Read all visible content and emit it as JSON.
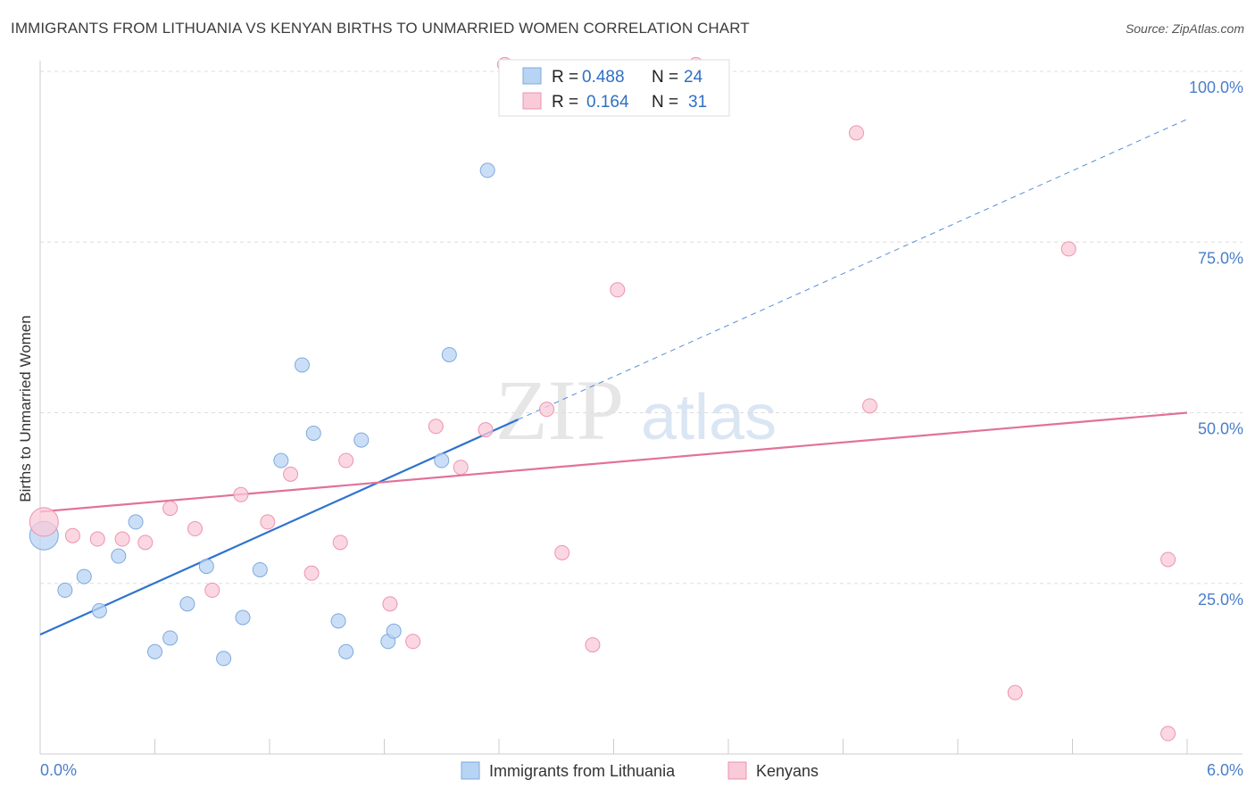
{
  "title": "IMMIGRANTS FROM LITHUANIA VS KENYAN BIRTHS TO UNMARRIED WOMEN CORRELATION CHART",
  "source": "Source: ZipAtlas.com",
  "watermark": {
    "zip": "ZIP",
    "atlas": "atlas"
  },
  "colors": {
    "blue_fill": "#b8d4f4",
    "blue_stroke": "#7ea9de",
    "blue_line": "#2e72cf",
    "pink_fill": "#f9cad8",
    "pink_stroke": "#ec93b1",
    "pink_line": "#e2719a",
    "tick_text": "#4a7fc9",
    "grid": "#dddddd"
  },
  "legend": {
    "rows": [
      {
        "r_label": "R =",
        "r_value": "0.488",
        "n_label": "N =",
        "n_value": "24"
      },
      {
        "r_label": "R =",
        "r_value": "0.164",
        "n_label": "N =",
        "n_value": "31"
      }
    ]
  },
  "chart_data": {
    "type": "scatter",
    "title": "IMMIGRANTS FROM LITHUANIA VS KENYAN BIRTHS TO UNMARRIED WOMEN CORRELATION CHART",
    "xlabel": "",
    "ylabel": "Births to Unmarried Women",
    "xlim": [
      0,
      6
    ],
    "ylim": [
      0,
      100
    ],
    "x_tick_labels": [
      "0.0%",
      "6.0%"
    ],
    "y_ticks": [
      25,
      50,
      75,
      100
    ],
    "y_tick_labels": [
      "25.0%",
      "50.0%",
      "75.0%",
      "100.0%"
    ],
    "series": [
      {
        "name": "Immigrants from Lithuania",
        "color": "blue",
        "points": [
          {
            "x": 0.02,
            "y": 32,
            "big": true
          },
          {
            "x": 0.13,
            "y": 24
          },
          {
            "x": 0.23,
            "y": 26
          },
          {
            "x": 0.31,
            "y": 21
          },
          {
            "x": 0.41,
            "y": 29
          },
          {
            "x": 0.5,
            "y": 34
          },
          {
            "x": 0.6,
            "y": 15
          },
          {
            "x": 0.68,
            "y": 17
          },
          {
            "x": 0.77,
            "y": 22
          },
          {
            "x": 0.87,
            "y": 27.5
          },
          {
            "x": 0.96,
            "y": 14
          },
          {
            "x": 1.06,
            "y": 20
          },
          {
            "x": 1.15,
            "y": 27
          },
          {
            "x": 1.26,
            "y": 43
          },
          {
            "x": 1.37,
            "y": 57
          },
          {
            "x": 1.43,
            "y": 47
          },
          {
            "x": 1.56,
            "y": 19.5
          },
          {
            "x": 1.6,
            "y": 15
          },
          {
            "x": 1.68,
            "y": 46
          },
          {
            "x": 1.82,
            "y": 16.5
          },
          {
            "x": 1.85,
            "y": 18
          },
          {
            "x": 2.1,
            "y": 43
          },
          {
            "x": 2.14,
            "y": 58.5
          },
          {
            "x": 2.34,
            "y": 85.5
          }
        ],
        "trend": {
          "x0": 0,
          "y0": 17.5,
          "x1": 2.5,
          "y1": 49,
          "dashed_to_x": 6,
          "dashed_to_y": 93
        }
      },
      {
        "name": "Kenyans",
        "color": "pink",
        "points": [
          {
            "x": 0.02,
            "y": 34,
            "big": true
          },
          {
            "x": 0.17,
            "y": 32
          },
          {
            "x": 0.3,
            "y": 31.5
          },
          {
            "x": 0.43,
            "y": 31.5
          },
          {
            "x": 0.55,
            "y": 31
          },
          {
            "x": 0.68,
            "y": 36
          },
          {
            "x": 0.81,
            "y": 33
          },
          {
            "x": 0.9,
            "y": 24
          },
          {
            "x": 1.05,
            "y": 38
          },
          {
            "x": 1.19,
            "y": 34
          },
          {
            "x": 1.31,
            "y": 41
          },
          {
            "x": 1.42,
            "y": 26.5
          },
          {
            "x": 1.57,
            "y": 31
          },
          {
            "x": 1.6,
            "y": 43
          },
          {
            "x": 1.83,
            "y": 22
          },
          {
            "x": 1.95,
            "y": 16.5
          },
          {
            "x": 2.07,
            "y": 48
          },
          {
            "x": 2.2,
            "y": 42
          },
          {
            "x": 2.33,
            "y": 47.5
          },
          {
            "x": 2.43,
            "y": 101
          },
          {
            "x": 2.65,
            "y": 50.5
          },
          {
            "x": 2.73,
            "y": 29.5
          },
          {
            "x": 2.89,
            "y": 16
          },
          {
            "x": 3.02,
            "y": 68
          },
          {
            "x": 3.43,
            "y": 101
          },
          {
            "x": 4.27,
            "y": 91
          },
          {
            "x": 4.34,
            "y": 51
          },
          {
            "x": 5.1,
            "y": 9
          },
          {
            "x": 5.38,
            "y": 74
          },
          {
            "x": 5.9,
            "y": 28.5
          },
          {
            "x": 5.9,
            "y": 3
          }
        ],
        "trend": {
          "x0": 0,
          "y0": 35.5,
          "x1": 6,
          "y1": 50
        }
      }
    ]
  }
}
